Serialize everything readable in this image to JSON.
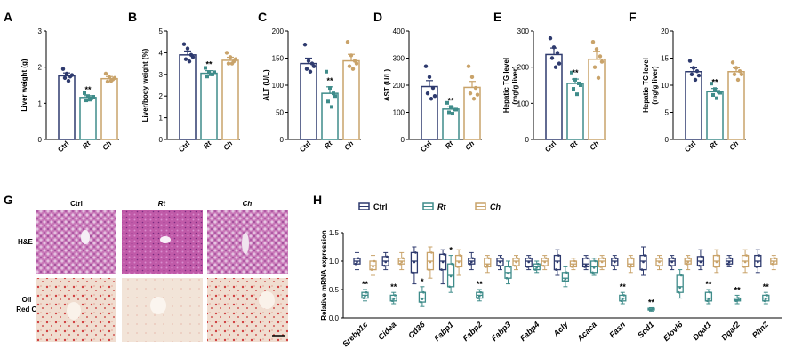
{
  "colors": {
    "ctrl": "#2e3a6e",
    "rt": "#3f8c8a",
    "ch": "#c9a36a"
  },
  "groups": [
    "Ctrl",
    "Rt",
    "Ch"
  ],
  "panel_G": {
    "label": "G",
    "columns": [
      "Ctrl",
      "Rt",
      "Ch"
    ],
    "rows": [
      "H&E",
      "Oil",
      "Red O"
    ]
  },
  "chart_data": [
    {
      "panel": "A",
      "type": "bar",
      "ylabel": "Liver weight (g)",
      "ylim": [
        0,
        3
      ],
      "ticks": [
        0,
        1,
        2,
        3
      ],
      "categories": [
        "Ctrl",
        "Rt",
        "Ch"
      ],
      "values": [
        1.76,
        1.16,
        1.68
      ],
      "errors": [
        0.08,
        0.05,
        0.06
      ],
      "points": [
        [
          1.95,
          1.82,
          1.74,
          1.7,
          1.62,
          1.78
        ],
        [
          1.28,
          1.2,
          1.14,
          1.08,
          1.1,
          1.18
        ],
        [
          1.82,
          1.72,
          1.66,
          1.6,
          1.62,
          1.7
        ]
      ],
      "sig": [
        "",
        "**",
        ""
      ]
    },
    {
      "panel": "B",
      "type": "bar",
      "ylabel": "Liver/body weight (%)",
      "ylim": [
        0,
        5
      ],
      "ticks": [
        0,
        1,
        2,
        3,
        4,
        5
      ],
      "categories": [
        "Ctrl",
        "Rt",
        "Ch"
      ],
      "values": [
        3.9,
        3.05,
        3.65
      ],
      "errors": [
        0.18,
        0.12,
        0.14
      ],
      "points": [
        [
          4.4,
          4.2,
          3.9,
          3.7,
          3.6,
          3.8
        ],
        [
          3.3,
          3.1,
          3.0,
          2.9,
          3.0,
          3.1
        ],
        [
          4.0,
          3.8,
          3.6,
          3.5,
          3.5,
          3.7
        ]
      ],
      "sig": [
        "",
        "**",
        ""
      ]
    },
    {
      "panel": "C",
      "type": "bar",
      "ylabel": "ALT (U/L)",
      "ylim": [
        0,
        200
      ],
      "ticks": [
        0,
        50,
        100,
        150,
        200
      ],
      "categories": [
        "Ctrl",
        "Rt",
        "Ch"
      ],
      "values": [
        140,
        85,
        145
      ],
      "errors": [
        10,
        12,
        12
      ],
      "points": [
        [
          175,
          145,
          140,
          130,
          125,
          135
        ],
        [
          125,
          95,
          85,
          70,
          60,
          80
        ],
        [
          180,
          155,
          145,
          135,
          130,
          140
        ]
      ],
      "sig": [
        "",
        "**",
        ""
      ]
    },
    {
      "panel": "D",
      "type": "bar",
      "ylabel": "AST (U/L)",
      "ylim": [
        0,
        400
      ],
      "ticks": [
        0,
        100,
        200,
        300,
        400
      ],
      "categories": [
        "Ctrl",
        "Rt",
        "Ch"
      ],
      "values": [
        195,
        112,
        192
      ],
      "errors": [
        22,
        8,
        22
      ],
      "points": [
        [
          270,
          230,
          190,
          170,
          150,
          160
        ],
        [
          135,
          120,
          110,
          100,
          95,
          110
        ],
        [
          270,
          230,
          190,
          170,
          150,
          165
        ]
      ],
      "sig": [
        "",
        "**",
        ""
      ]
    },
    {
      "panel": "E",
      "type": "bar",
      "ylabel": "Hepatic TG level (mg/g liver)",
      "ylim": [
        0,
        300
      ],
      "ticks": [
        0,
        100,
        200,
        300
      ],
      "categories": [
        "Ctrl",
        "Rt",
        "Ch"
      ],
      "values": [
        235,
        155,
        222
      ],
      "errors": [
        18,
        12,
        22
      ],
      "points": [
        [
          280,
          255,
          240,
          225,
          200,
          210
        ],
        [
          185,
          165,
          155,
          140,
          125,
          150
        ],
        [
          270,
          250,
          230,
          200,
          170,
          215
        ]
      ],
      "sig": [
        "",
        "**",
        ""
      ]
    },
    {
      "panel": "F",
      "type": "bar",
      "ylabel": "Hepatic TC level (mg/g liver)",
      "ylim": [
        0,
        20
      ],
      "ticks": [
        0,
        5,
        10,
        15,
        20
      ],
      "categories": [
        "Ctrl",
        "Rt",
        "Ch"
      ],
      "values": [
        12.5,
        8.8,
        12.5
      ],
      "errors": [
        0.7,
        0.6,
        0.7
      ],
      "points": [
        [
          14.5,
          13.2,
          12.6,
          12.0,
          11.0,
          11.8
        ],
        [
          10.3,
          9.3,
          8.8,
          8.2,
          7.6,
          8.6
        ],
        [
          14.2,
          13.2,
          12.6,
          12.0,
          11.0,
          12.0
        ]
      ],
      "sig": [
        "",
        "**",
        ""
      ]
    },
    {
      "panel": "H",
      "type": "box",
      "ylabel": "Relative mRNA expression",
      "ylim": [
        0,
        1.5
      ],
      "ticks": [
        0.0,
        0.5,
        1.0,
        1.5
      ],
      "tick_labels": [
        "0.0",
        "0.5",
        "1.0",
        "1.5"
      ],
      "legend": [
        "Ctrl",
        "Rt",
        "Ch"
      ],
      "genes": [
        "Srebp1c",
        "Cidea",
        "Cd36",
        "Fabp1",
        "Fabp2",
        "Fabp3",
        "Fabp4",
        "Acly",
        "Acaca",
        "Fasn",
        "Scd1",
        "Elovl6",
        "Dgat1",
        "Dgat2",
        "Plin2"
      ],
      "sig": [
        "**",
        "**",
        "*",
        "*",
        "**",
        "",
        "",
        "",
        "",
        "**",
        "**",
        "",
        "**",
        "**",
        "**"
      ],
      "boxes": [
        [
          [
            0.85,
            0.95,
            1.0,
            1.05,
            1.15
          ],
          [
            0.3,
            0.35,
            0.4,
            0.45,
            0.5
          ],
          [
            0.75,
            0.85,
            0.92,
            1.0,
            1.1
          ]
        ],
        [
          [
            0.85,
            0.92,
            1.0,
            1.08,
            1.15
          ],
          [
            0.25,
            0.3,
            0.35,
            0.4,
            0.45
          ],
          [
            0.85,
            0.95,
            1.0,
            1.05,
            1.15
          ]
        ],
        [
          [
            0.6,
            0.8,
            1.0,
            1.15,
            1.25
          ],
          [
            0.2,
            0.28,
            0.35,
            0.45,
            0.55
          ],
          [
            0.7,
            0.85,
            1.0,
            1.15,
            1.25
          ]
        ],
        [
          [
            0.6,
            0.85,
            1.0,
            1.12,
            1.2
          ],
          [
            0.45,
            0.55,
            0.75,
            0.95,
            1.1
          ],
          [
            0.75,
            0.9,
            1.0,
            1.1,
            1.2
          ]
        ],
        [
          [
            0.85,
            0.95,
            1.0,
            1.05,
            1.15
          ],
          [
            0.3,
            0.35,
            0.4,
            0.45,
            0.5
          ],
          [
            0.8,
            0.9,
            0.95,
            1.05,
            1.1
          ]
        ],
        [
          [
            0.85,
            0.92,
            1.0,
            1.05,
            1.1
          ],
          [
            0.6,
            0.7,
            0.8,
            0.9,
            1.0
          ],
          [
            0.85,
            0.92,
            1.0,
            1.05,
            1.1
          ]
        ],
        [
          [
            0.85,
            0.9,
            1.0,
            1.05,
            1.1
          ],
          [
            0.8,
            0.85,
            0.9,
            0.95,
            1.0
          ],
          [
            0.85,
            0.92,
            1.0,
            1.05,
            1.1
          ]
        ],
        [
          [
            0.75,
            0.85,
            1.0,
            1.1,
            1.2
          ],
          [
            0.55,
            0.65,
            0.7,
            0.8,
            0.9
          ],
          [
            0.85,
            0.9,
            0.95,
            1.0,
            1.05
          ]
        ],
        [
          [
            0.85,
            0.9,
            0.95,
            1.05,
            1.1
          ],
          [
            0.75,
            0.8,
            0.9,
            1.0,
            1.05
          ],
          [
            0.85,
            0.9,
            1.0,
            1.05,
            1.1
          ]
        ],
        [
          [
            0.85,
            0.92,
            1.0,
            1.05,
            1.1
          ],
          [
            0.25,
            0.3,
            0.35,
            0.4,
            0.45
          ],
          [
            0.8,
            0.9,
            0.95,
            1.05,
            1.1
          ]
        ],
        [
          [
            0.75,
            0.85,
            1.0,
            1.1,
            1.25
          ],
          [
            0.12,
            0.14,
            0.15,
            0.17,
            0.18
          ],
          [
            0.85,
            0.92,
            1.0,
            1.05,
            1.1
          ]
        ],
        [
          [
            0.85,
            0.92,
            1.0,
            1.05,
            1.1
          ],
          [
            0.35,
            0.45,
            0.55,
            0.75,
            0.85
          ],
          [
            0.85,
            0.95,
            1.0,
            1.05,
            1.1
          ]
        ],
        [
          [
            0.85,
            0.92,
            1.0,
            1.08,
            1.2
          ],
          [
            0.25,
            0.3,
            0.35,
            0.45,
            0.5
          ],
          [
            0.8,
            0.9,
            1.0,
            1.1,
            1.2
          ]
        ],
        [
          [
            0.9,
            0.95,
            1.0,
            1.05,
            1.1
          ],
          [
            0.25,
            0.3,
            0.32,
            0.35,
            0.4
          ],
          [
            0.8,
            0.9,
            1.0,
            1.1,
            1.2
          ]
        ],
        [
          [
            0.8,
            0.9,
            1.0,
            1.1,
            1.2
          ],
          [
            0.25,
            0.3,
            0.35,
            0.4,
            0.45
          ],
          [
            0.85,
            0.95,
            1.0,
            1.05,
            1.1
          ]
        ]
      ]
    }
  ]
}
